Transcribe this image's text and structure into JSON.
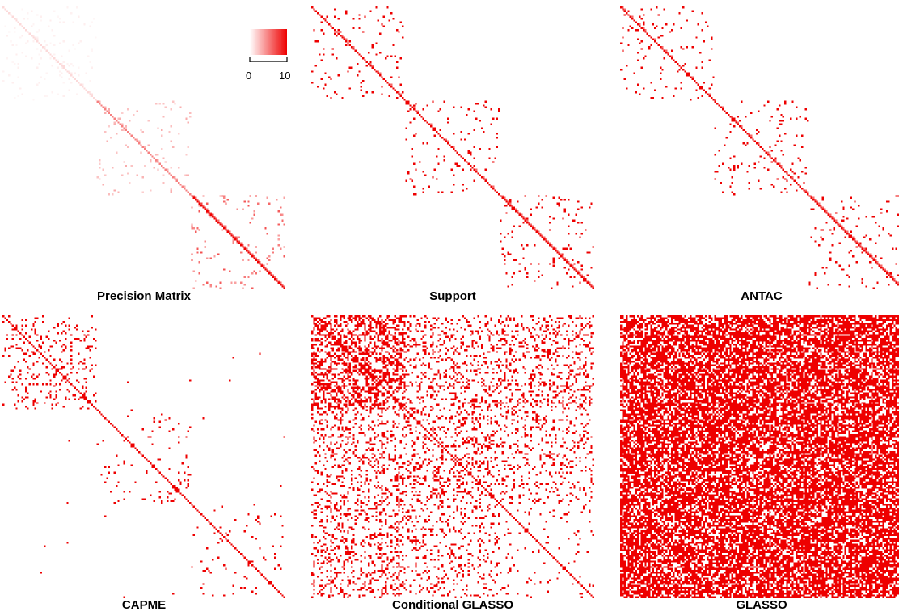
{
  "chart_data": {
    "type": "heatmap",
    "matrix_size": 150,
    "blocks": [
      [
        0,
        50
      ],
      [
        50,
        100
      ],
      [
        100,
        150
      ]
    ],
    "color": "#ee0000",
    "panels": [
      {
        "title": "Precision Matrix",
        "kind": "precision",
        "offdiag_density": 0.015,
        "seed": 11,
        "diag_values": [
          1,
          5,
          10
        ]
      },
      {
        "title": "Support",
        "kind": "support",
        "offdiag_density": 0.015,
        "seed": 11
      },
      {
        "title": "ANTAC",
        "kind": "support",
        "offdiag_density": 0.013,
        "seed": 23
      },
      {
        "title": "CAPME",
        "kind": "estimate",
        "block_density": [
          0.12,
          0.05,
          0.03
        ],
        "off_density": 0.002,
        "seed": 37
      },
      {
        "title": "Conditional GLASSO",
        "kind": "estimate",
        "block_density": [
          0.45,
          0.2,
          0.04
        ],
        "off_density": 0.14,
        "first_block_row_density": 0.2,
        "seed": 41
      },
      {
        "title": "GLASSO",
        "kind": "estimate",
        "block_density": [
          0.7,
          0.7,
          0.7
        ],
        "off_density": 0.7,
        "seed": 53
      }
    ],
    "colorbar": {
      "min": 0,
      "max": 10,
      "tick_labels": [
        "0",
        "10"
      ],
      "from_color": "#ffffff",
      "to_color": "#ee0000"
    }
  }
}
